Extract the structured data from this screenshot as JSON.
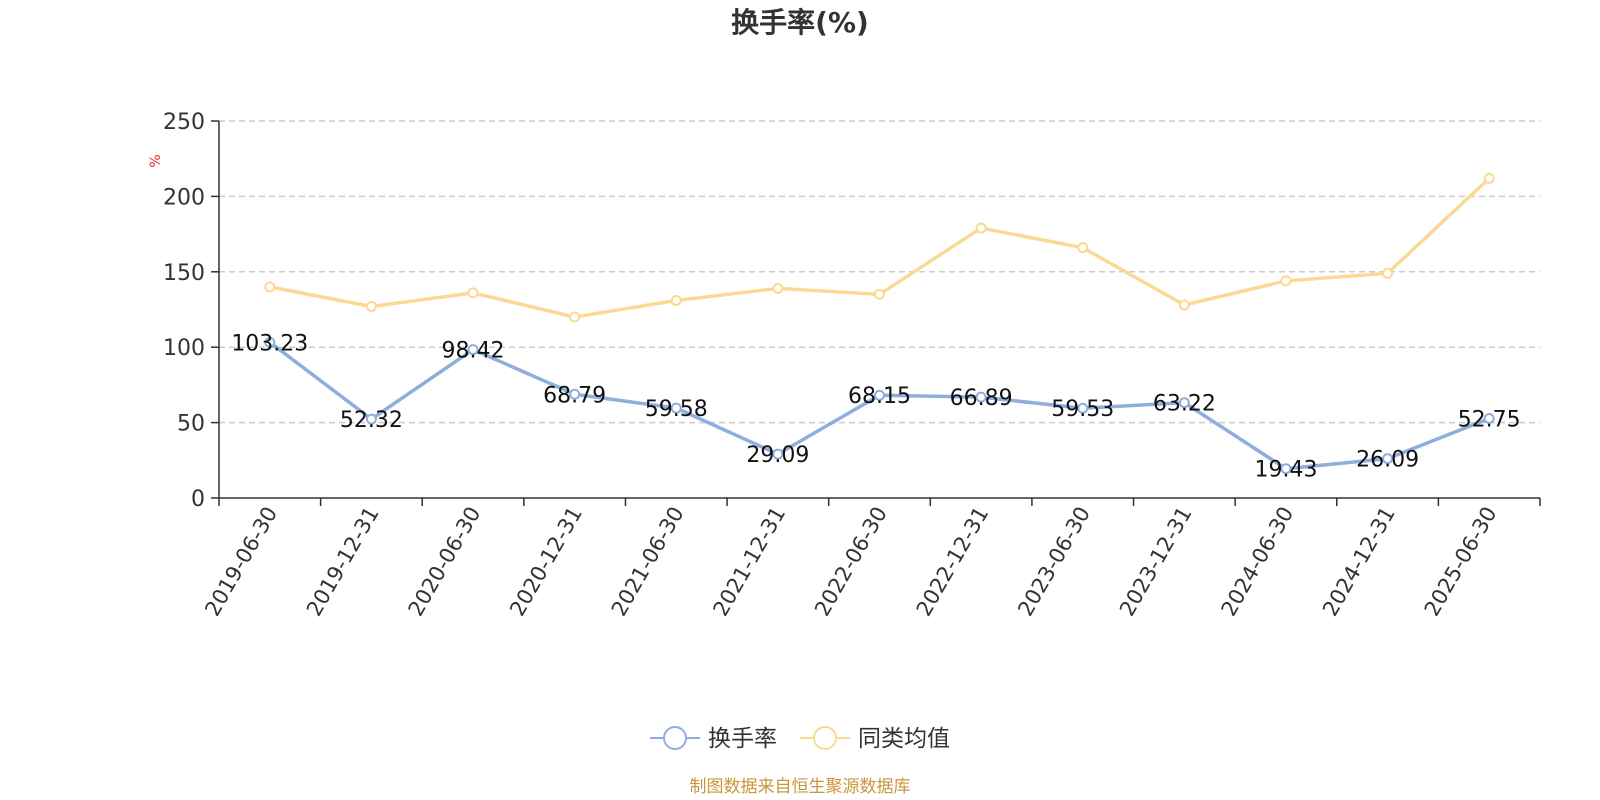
{
  "chart_data": {
    "type": "line",
    "title": "换手率(%)",
    "ylabel": "%",
    "xlabel": "",
    "ylim": [
      0,
      250
    ],
    "yticks": [
      0,
      50,
      100,
      150,
      200,
      250
    ],
    "grid": true,
    "legend_position": "bottom-center",
    "categories": [
      "2019-06-30",
      "2019-12-31",
      "2020-06-30",
      "2020-12-31",
      "2021-06-30",
      "2021-12-31",
      "2022-06-30",
      "2022-12-31",
      "2023-06-30",
      "2023-12-31",
      "2024-06-30",
      "2024-12-31",
      "2025-06-30"
    ],
    "series": [
      {
        "name": "换手率",
        "color": "#8eaedb",
        "show_labels": true,
        "values": [
          103.23,
          52.32,
          98.42,
          68.79,
          59.58,
          29.09,
          68.15,
          66.89,
          59.53,
          63.22,
          19.43,
          26.09,
          52.75
        ]
      },
      {
        "name": "同类均值",
        "color": "#fbd994",
        "show_labels": false,
        "values": [
          140,
          127,
          136,
          120,
          131,
          139,
          135,
          179,
          166,
          128,
          144,
          149,
          212
        ]
      }
    ],
    "source": "制图数据来自恒生聚源数据库"
  },
  "colors": {
    "unit_label": "#e03030",
    "source_label": "#c8963c",
    "grid": "#cccccc",
    "axis": "#333333"
  }
}
